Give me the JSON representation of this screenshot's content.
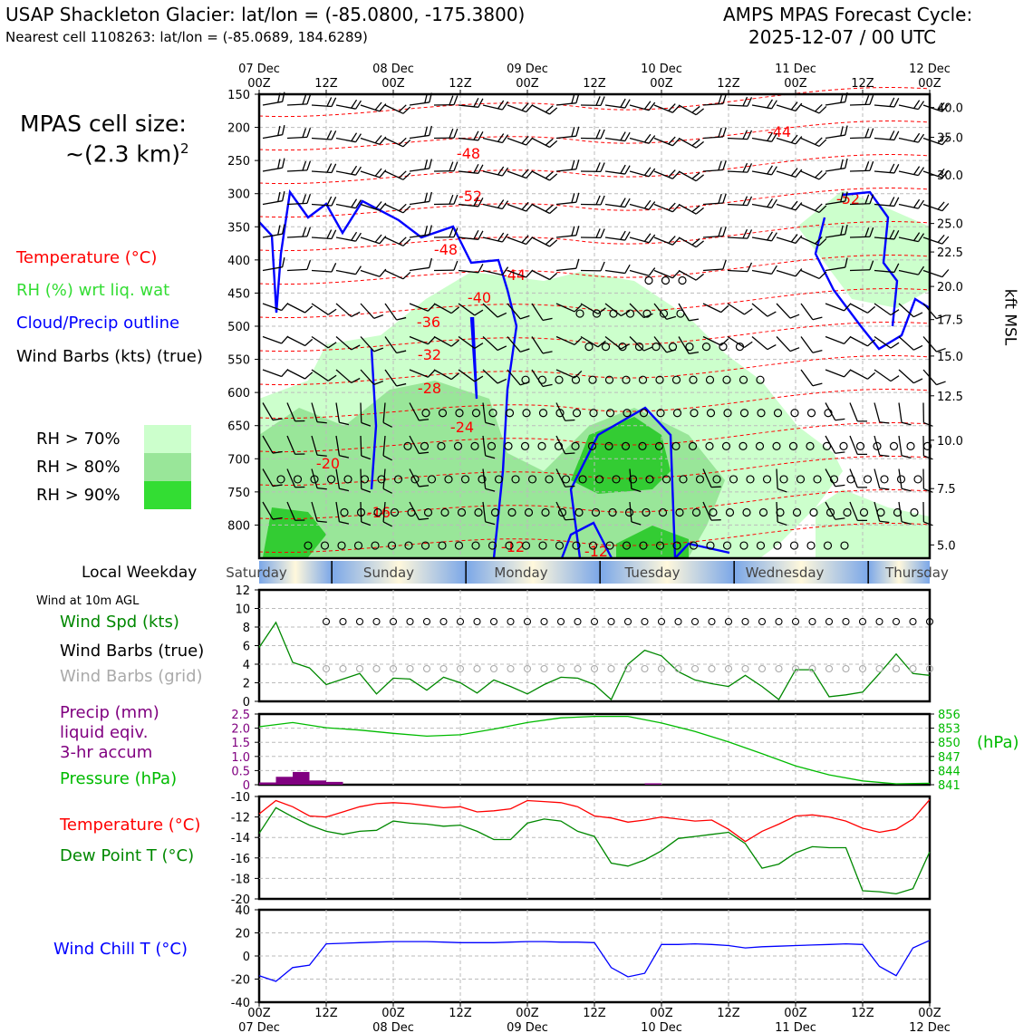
{
  "header": {
    "title_left": "USAP Shackleton Glacier: lat/lon = (-85.0800, -175.3800)",
    "subtitle_left": "Nearest cell 1108263: lat/lon = (-85.0689, 184.6289)",
    "title_right_1": "AMPS MPAS Forecast Cycle:",
    "title_right_2": "2025-12-07 / 00 UTC"
  },
  "cell_size": {
    "line1": "MPAS cell size:",
    "line2": "~(2.3 km)",
    "sup": "2"
  },
  "legend": {
    "temperature": "Temperature (°C)",
    "rh": "RH (%) wrt liq. wat",
    "cloud": "Cloud/Precip outline",
    "barbs": "Wind Barbs (kts) (true)",
    "rh70": "RH > 70%",
    "rh80": "RH > 80%",
    "rh90": "RH > 90%"
  },
  "colors": {
    "temperature": "#ff0000",
    "rh_label": "#33cc33",
    "cloud": "#0000ff",
    "rh70": "#ccffcc",
    "rh80": "#99e699",
    "rh90": "#33cc33",
    "wind_speed": "#008800",
    "precip": "#800080",
    "pressure": "#00bb00",
    "dewpoint": "#008800",
    "windchill": "#0000ff",
    "grid_barbs": "#aaaaaa"
  },
  "top_time_axis": {
    "dates": [
      "07 Dec",
      "08 Dec",
      "09 Dec",
      "10 Dec",
      "11 Dec",
      "12 Dec"
    ],
    "hours": [
      "00Z",
      "12Z",
      "00Z",
      "12Z",
      "00Z",
      "12Z",
      "00Z",
      "12Z",
      "00Z",
      "12Z",
      "00Z"
    ]
  },
  "bottom_time_axis": {
    "hours": [
      "00Z",
      "12Z",
      "00Z",
      "12Z",
      "00Z",
      "12Z",
      "00Z",
      "12Z",
      "00Z",
      "12Z",
      "00Z"
    ],
    "dates": [
      "07 Dec",
      "08 Dec",
      "09 Dec",
      "10 Dec",
      "11 Dec",
      "12 Dec"
    ]
  },
  "weekday_row": {
    "label": "Local Weekday",
    "days": [
      "Saturday",
      "Sunday",
      "Monday",
      "Tuesday",
      "Wednesday",
      "Thursday"
    ]
  },
  "wind10m_label": "Wind at 10m AGL",
  "panel_labels": {
    "wind_spd": "Wind Spd (kts)",
    "wind_barbs_true": "Wind Barbs (true)",
    "wind_barbs_grid": "Wind Barbs (grid)",
    "precip_1": "Precip (mm)",
    "precip_2": "liquid eqiv.",
    "precip_3": "3-hr accum",
    "pressure": "Pressure (hPa)",
    "pressure_unit": "(hPa)",
    "temperature": "Temperature (°C)",
    "dewpoint": "Dew Point T (°C)",
    "windchill": "Wind Chill T (°C)",
    "kft_msl": "kft MSL"
  },
  "chart_data": [
    {
      "type": "area",
      "name": "time-height cross section",
      "x_range_hours": [
        0,
        120
      ],
      "ylim_hpa": [
        850,
        150
      ],
      "y_ticks": [
        "150",
        "200",
        "250",
        "300",
        "350",
        "400",
        "450",
        "500",
        "550",
        "600",
        "650",
        "700",
        "750",
        "800"
      ],
      "kft_ticks": [
        "40.0",
        "35.0",
        "30.0",
        "25.0",
        "22.5",
        "20.0",
        "17.5",
        "15.0",
        "12.5",
        "10.0",
        "7.5",
        "5.0"
      ],
      "kft_tick_pressures": [
        170,
        215,
        272,
        345,
        388,
        440,
        490,
        545,
        605,
        672,
        745,
        830
      ],
      "temperature_contour_labels": [
        "-44",
        "-48",
        "-52",
        "-48",
        "-44",
        "-40",
        "-36",
        "-32",
        "-28",
        "-24",
        "-20",
        "-16",
        "-12",
        "-12",
        "-52"
      ],
      "calm_rows_hpa": [
        420,
        470,
        520,
        570,
        620,
        670,
        720,
        770,
        820
      ]
    },
    {
      "type": "line",
      "name": "wind speed 10m",
      "x_hours": [
        0,
        3,
        6,
        9,
        12,
        15,
        18,
        21,
        24,
        27,
        30,
        33,
        36,
        39,
        42,
        45,
        48,
        51,
        54,
        57,
        60,
        63,
        66,
        69,
        72,
        75,
        78,
        81,
        84,
        87,
        90,
        93,
        96,
        99,
        102,
        105,
        108,
        111,
        114,
        117,
        120
      ],
      "values": [
        5.8,
        8.5,
        4.2,
        3.6,
        1.8,
        2.4,
        3.0,
        0.8,
        2.5,
        2.4,
        1.2,
        2.6,
        2.0,
        0.9,
        2.3,
        1.6,
        0.8,
        1.8,
        2.6,
        2.5,
        1.8,
        0.2,
        4.0,
        5.5,
        4.9,
        3.2,
        2.3,
        1.9,
        1.6,
        2.8,
        1.6,
        0.2,
        3.4,
        3.4,
        0.5,
        0.7,
        1.0,
        3.0,
        5.1,
        3.0,
        2.8
      ],
      "ylim": [
        0,
        12
      ],
      "y_ticks": [
        "0",
        "2",
        "4",
        "6",
        "8",
        "10",
        "12"
      ]
    },
    {
      "type": "bar",
      "name": "precip 3-hr accum",
      "x_hours": [
        3,
        6,
        9,
        12,
        15,
        18,
        72
      ],
      "values": [
        0.08,
        0.28,
        0.45,
        0.15,
        0.1,
        0.0,
        0.05
      ],
      "ylim": [
        0,
        2.5
      ],
      "y_ticks": [
        "0",
        "0.5",
        "1.0",
        "1.5",
        "2.0",
        "2.5"
      ]
    },
    {
      "type": "line",
      "name": "pressure",
      "x_hours": [
        0,
        6,
        12,
        18,
        24,
        30,
        36,
        42,
        48,
        54,
        60,
        66,
        72,
        78,
        84,
        90,
        96,
        102,
        108,
        114,
        120
      ],
      "values": [
        853.3,
        854.2,
        853.1,
        852.6,
        851.9,
        851.3,
        851.6,
        852.8,
        854.2,
        855.2,
        855.5,
        855.5,
        854.1,
        852.3,
        850.1,
        847.6,
        845.0,
        843.1,
        841.8,
        841.2,
        841.3
      ],
      "ylim": [
        841,
        856
      ],
      "y_ticks": [
        "841",
        "844",
        "847",
        "850",
        "853",
        "856"
      ]
    },
    {
      "type": "line",
      "name": "temperature and dew point",
      "x_hours": [
        0,
        3,
        6,
        9,
        12,
        15,
        18,
        21,
        24,
        27,
        30,
        33,
        36,
        39,
        42,
        45,
        48,
        51,
        54,
        57,
        60,
        63,
        66,
        69,
        72,
        75,
        78,
        81,
        84,
        87,
        90,
        93,
        96,
        99,
        102,
        105,
        108,
        111,
        114,
        117,
        120
      ],
      "series": [
        {
          "name": "Temperature (°C)",
          "values": [
            -11.7,
            -10.4,
            -11.0,
            -11.9,
            -12.0,
            -11.5,
            -11.0,
            -10.7,
            -10.6,
            -10.7,
            -10.9,
            -11.1,
            -11.0,
            -11.5,
            -11.4,
            -11.2,
            -10.4,
            -10.5,
            -10.6,
            -11.0,
            -11.9,
            -12.1,
            -12.5,
            -12.3,
            -12.0,
            -12.2,
            -12.4,
            -12.3,
            -13.2,
            -14.4,
            -13.4,
            -12.7,
            -11.9,
            -11.8,
            -12.0,
            -12.4,
            -13.1,
            -13.5,
            -13.2,
            -12.2,
            -10.3
          ]
        },
        {
          "name": "Dew Point T (°C)",
          "values": [
            -13.6,
            -11.1,
            -12.0,
            -12.8,
            -13.4,
            -13.7,
            -13.4,
            -13.3,
            -12.4,
            -12.6,
            -12.7,
            -12.9,
            -12.8,
            -13.4,
            -14.2,
            -14.2,
            -12.6,
            -12.2,
            -12.4,
            -13.4,
            -13.9,
            -16.5,
            -16.8,
            -16.2,
            -15.3,
            -14.1,
            -13.9,
            -13.7,
            -13.5,
            -14.6,
            -17.0,
            -16.6,
            -15.5,
            -14.9,
            -15.0,
            -15.0,
            -19.2,
            -19.3,
            -19.5,
            -19.0,
            -15.4
          ]
        }
      ],
      "ylim": [
        -20,
        -10
      ],
      "y_ticks": [
        "-10",
        "-12",
        "-14",
        "-16",
        "-18",
        "-20"
      ]
    },
    {
      "type": "line",
      "name": "wind chill",
      "x_hours": [
        0,
        3,
        6,
        9,
        12,
        15,
        18,
        21,
        24,
        27,
        30,
        33,
        36,
        39,
        42,
        45,
        48,
        51,
        54,
        57,
        60,
        63,
        66,
        69,
        72,
        75,
        78,
        81,
        84,
        87,
        90,
        93,
        96,
        99,
        102,
        105,
        108,
        111,
        114,
        117,
        120
      ],
      "values": [
        -17,
        -22,
        -10,
        -8,
        10.5,
        11,
        11.5,
        12,
        12.5,
        12.5,
        12.5,
        12,
        11.5,
        11.5,
        11.5,
        12,
        12.5,
        12.5,
        12,
        12,
        11.5,
        -10,
        -18,
        -15,
        10,
        10,
        10.5,
        10,
        9,
        7,
        8,
        8.5,
        9,
        9.5,
        10,
        10.5,
        10,
        -9,
        -17,
        7,
        13.5
      ],
      "ylim": [
        -40,
        40
      ],
      "y_ticks": [
        "40",
        "20",
        "0",
        "-20",
        "-40"
      ]
    }
  ]
}
